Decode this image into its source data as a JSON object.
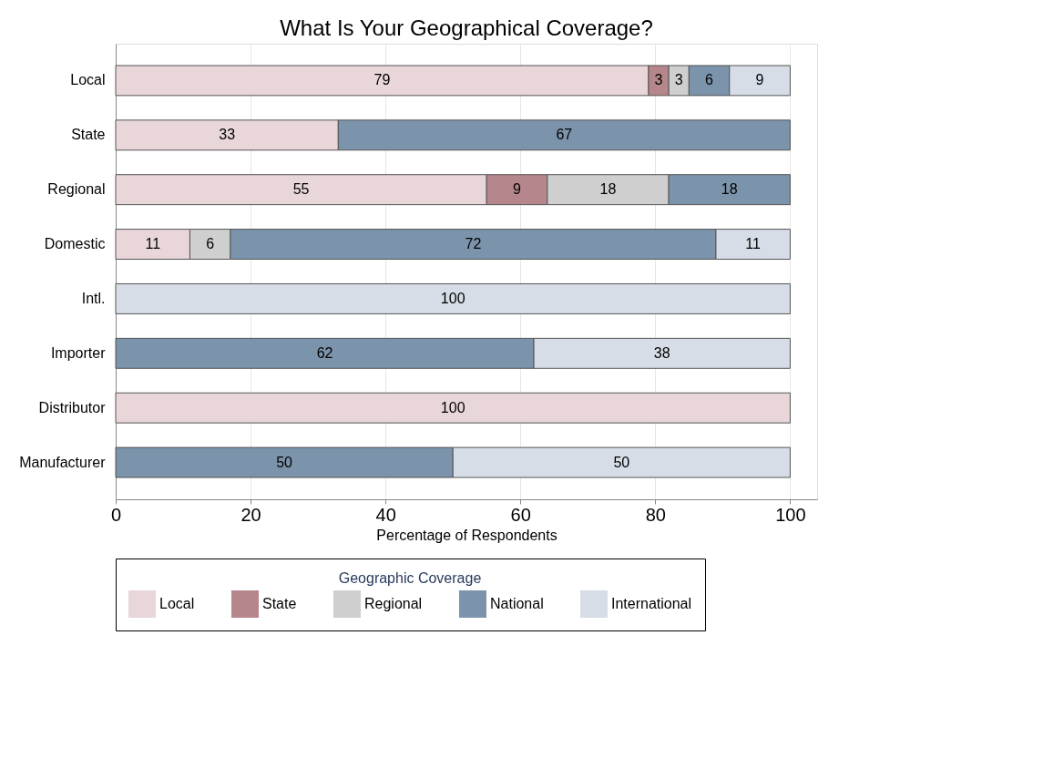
{
  "chart_data": {
    "type": "bar",
    "orientation": "horizontal",
    "stacked": true,
    "title": "What Is Your Geographical Coverage?",
    "xlabel": "Percentage of Respondents",
    "legend_title": "Geographic Coverage",
    "categories": [
      "Local",
      "State",
      "Regional",
      "Domestic",
      "Intl.",
      "Importer",
      "Distributor",
      "Manufacturer"
    ],
    "series": [
      {
        "name": "Local",
        "color": "#e8d6d9",
        "values": [
          79,
          33,
          55,
          11,
          null,
          null,
          100,
          null
        ]
      },
      {
        "name": "State",
        "color": "#b5868b",
        "values": [
          3,
          null,
          9,
          null,
          null,
          null,
          null,
          null
        ]
      },
      {
        "name": "Regional",
        "color": "#cfcfcf",
        "values": [
          3,
          null,
          18,
          6,
          null,
          null,
          null,
          null
        ]
      },
      {
        "name": "National",
        "color": "#7b93ab",
        "values": [
          6,
          67,
          18,
          72,
          null,
          62,
          null,
          50
        ]
      },
      {
        "name": "International",
        "color": "#d6dde6",
        "values": [
          9,
          null,
          null,
          11,
          100,
          38,
          null,
          50
        ]
      }
    ],
    "xlim": [
      0,
      104
    ],
    "xticks": [
      0,
      20,
      40,
      60,
      80,
      100
    ],
    "grid": "x",
    "legend": "bottom",
    "data_labels": true
  }
}
